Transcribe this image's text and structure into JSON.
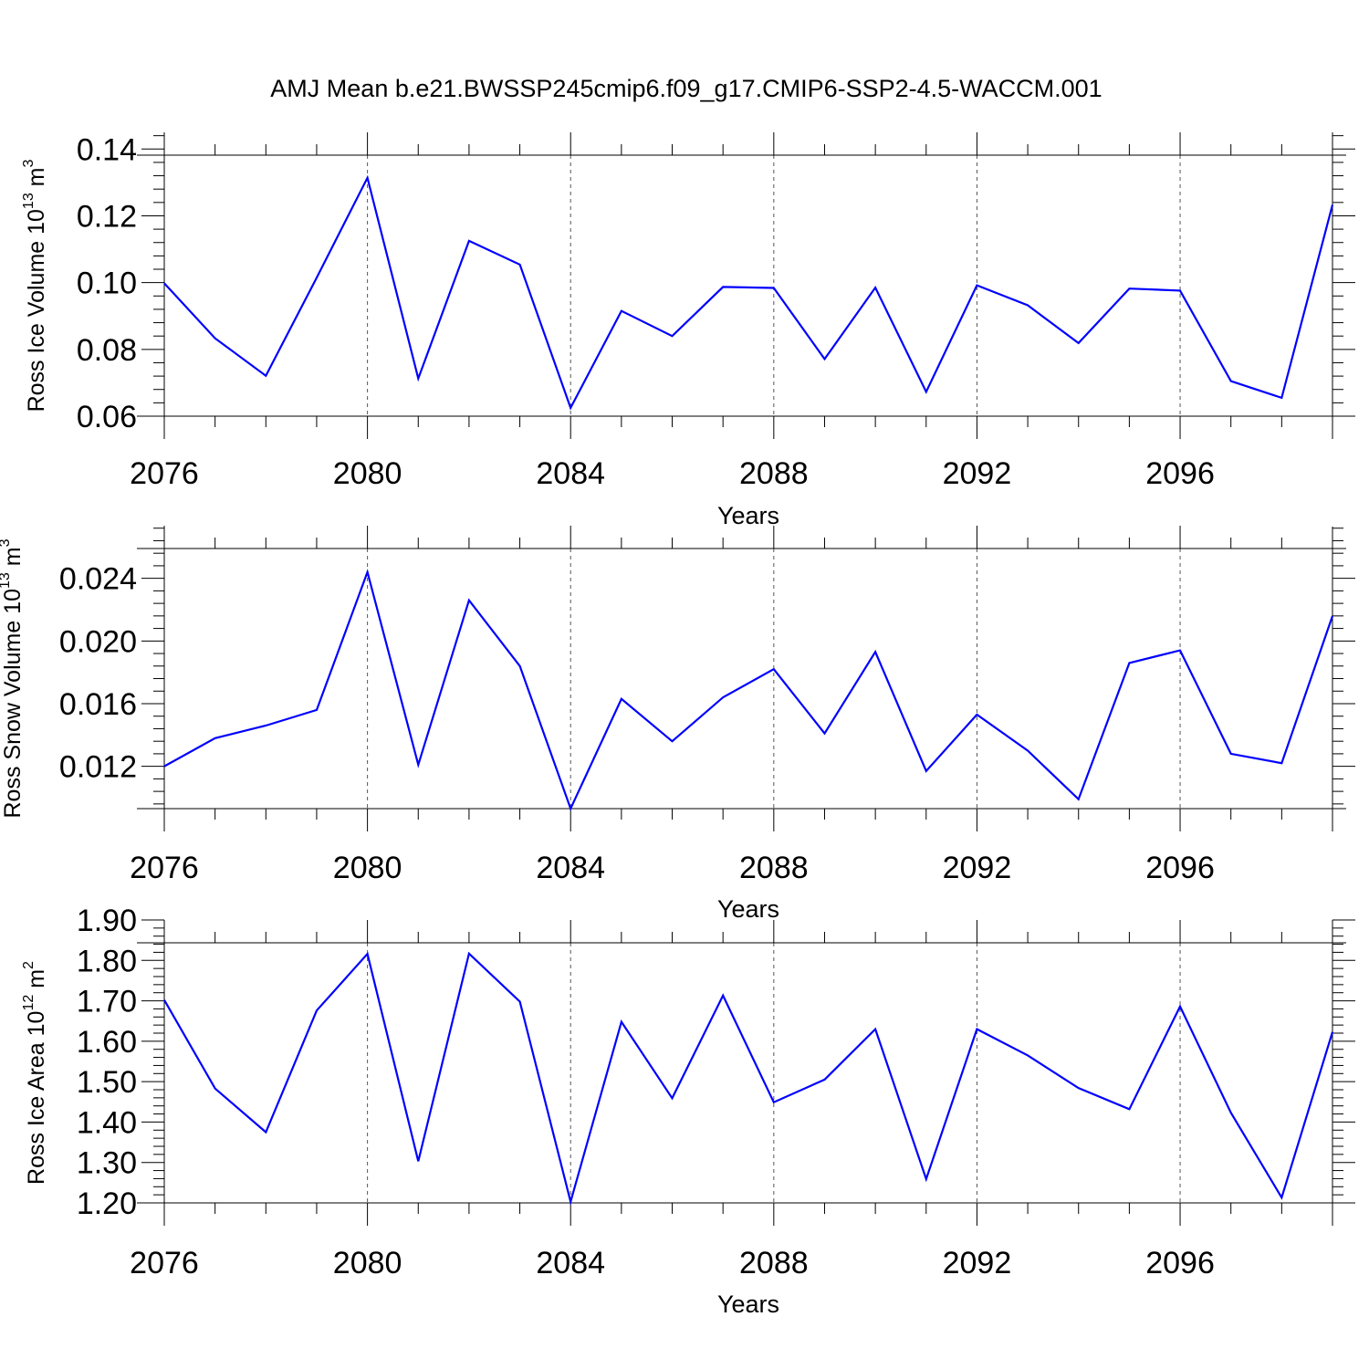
{
  "chart_data": [
    {
      "type": "line",
      "title": "AMJ Mean b.e21.BWSSP245cmip6.f09_g17.CMIP6-SSP2-4.5-WACCM.001",
      "xlabel": "Years",
      "ylabel": {
        "prefix": "Ross Ice Volume 10",
        "exp": "13",
        "unit": " m",
        "unit_exp": "3"
      },
      "x": [
        2076,
        2077,
        2078,
        2079,
        2080,
        2081,
        2082,
        2083,
        2084,
        2085,
        2086,
        2087,
        2088,
        2089,
        2090,
        2091,
        2092,
        2093,
        2094,
        2095,
        2096,
        2097,
        2098,
        2099
      ],
      "values": [
        0.0998,
        0.0833,
        0.0721,
        0.1015,
        0.1314,
        0.0713,
        0.1125,
        0.1054,
        0.0625,
        0.0915,
        0.084,
        0.0987,
        0.0984,
        0.0771,
        0.0985,
        0.0673,
        0.0992,
        0.0932,
        0.0819,
        0.0982,
        0.0976,
        0.0705,
        0.0655,
        0.1233
      ],
      "color": "#0000ff",
      "ylim": [
        0.06,
        0.145
      ],
      "yticks": [
        0.06,
        0.08,
        0.1,
        0.12,
        0.14
      ],
      "ytick_labels": [
        "0.06",
        "0.08",
        "0.10",
        "0.12",
        "0.14"
      ],
      "xticks": [
        2076,
        2080,
        2084,
        2088,
        2092,
        2096
      ],
      "xtick_labels": [
        "2076",
        "2080",
        "2084",
        "2088",
        "2092",
        "2096"
      ],
      "xlim": [
        2076,
        2099
      ],
      "grid": "vertical dashed at major x ticks"
    },
    {
      "type": "line",
      "xlabel": "Years",
      "ylabel": {
        "prefix": "Ross Snow Volume 10",
        "exp": "13",
        "unit": " m",
        "unit_exp": "3"
      },
      "x": [
        2076,
        2077,
        2078,
        2079,
        2080,
        2081,
        2082,
        2083,
        2084,
        2085,
        2086,
        2087,
        2088,
        2089,
        2090,
        2091,
        2092,
        2093,
        2094,
        2095,
        2096,
        2097,
        2098,
        2099
      ],
      "values": [
        0.012,
        0.0138,
        0.0146,
        0.0156,
        0.0244,
        0.0121,
        0.0226,
        0.0184,
        0.0093,
        0.0163,
        0.0136,
        0.0164,
        0.0182,
        0.0141,
        0.0193,
        0.0117,
        0.0153,
        0.013,
        0.0099,
        0.0186,
        0.0194,
        0.0128,
        0.0122,
        0.0216
      ],
      "color": "#0000ff",
      "ylim": [
        0.0093,
        0.0273
      ],
      "yticks": [
        0.012,
        0.016,
        0.02,
        0.024
      ],
      "ytick_labels": [
        "0.012",
        "0.016",
        "0.020",
        "0.024"
      ],
      "xticks": [
        2076,
        2080,
        2084,
        2088,
        2092,
        2096
      ],
      "xtick_labels": [
        "2076",
        "2080",
        "2084",
        "2088",
        "2092",
        "2096"
      ],
      "xlim": [
        2076,
        2099
      ],
      "grid": "vertical dashed at major x ticks"
    },
    {
      "type": "line",
      "xlabel": "Years",
      "ylabel": {
        "prefix": "Ross Ice Area 10",
        "exp": "12",
        "unit": " m",
        "unit_exp": "2"
      },
      "x": [
        2076,
        2077,
        2078,
        2079,
        2080,
        2081,
        2082,
        2083,
        2084,
        2085,
        2086,
        2087,
        2088,
        2089,
        2090,
        2091,
        2092,
        2093,
        2094,
        2095,
        2096,
        2097,
        2098,
        2099
      ],
      "values": [
        1.702,
        1.483,
        1.375,
        1.676,
        1.816,
        1.303,
        1.817,
        1.698,
        1.203,
        1.648,
        1.459,
        1.713,
        1.449,
        1.505,
        1.63,
        1.259,
        1.63,
        1.565,
        1.484,
        1.432,
        1.686,
        1.423,
        1.213,
        1.623
      ],
      "color": "#0000ff",
      "ylim": [
        1.2,
        1.9
      ],
      "yticks": [
        1.2,
        1.3,
        1.4,
        1.5,
        1.6,
        1.7,
        1.8,
        1.9
      ],
      "ytick_labels": [
        "1.20",
        "1.30",
        "1.40",
        "1.50",
        "1.60",
        "1.70",
        "1.80",
        "1.90"
      ],
      "xticks": [
        2076,
        2080,
        2084,
        2088,
        2092,
        2096
      ],
      "xtick_labels": [
        "2076",
        "2080",
        "2084",
        "2088",
        "2092",
        "2096"
      ],
      "xlim": [
        2076,
        2099
      ],
      "grid": "vertical dashed at major x ticks"
    }
  ]
}
